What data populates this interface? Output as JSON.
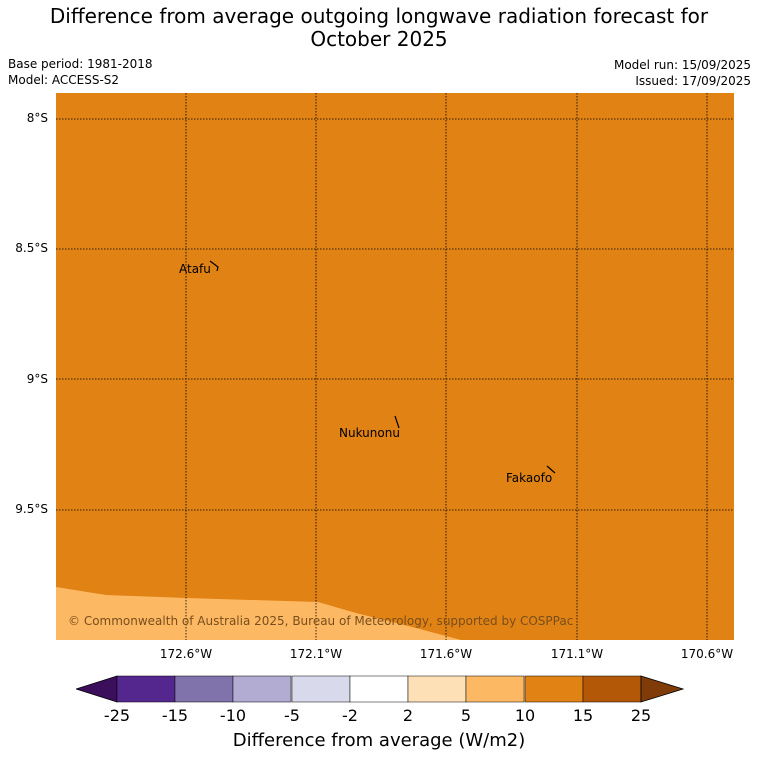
{
  "title_line1": "Difference from average outgoing longwave radiation forecast for",
  "title_line2": "October 2025",
  "base_period": "Base period: 1981-2018",
  "model": "Model: ACCESS-S2",
  "model_run": "Model run: 15/09/2025",
  "issued": "Issued: 17/09/2025",
  "lat_labels": [
    "8°S",
    "8.5°S",
    "9°S",
    "9.5°S"
  ],
  "lon_labels": [
    "172.6°W",
    "172.1°W",
    "171.6°W",
    "171.1°W",
    "170.6°W"
  ],
  "places": [
    "Atafu",
    "Nukunonu",
    "Fakaofo"
  ],
  "copyright": "© Commonwealth of Australia 2025, Bureau of Meteorology, supported by COSPPac",
  "colorbar": {
    "ticks": [
      "-25",
      "-15",
      "-10",
      "-5",
      "-2",
      "2",
      "5",
      "10",
      "15",
      "25"
    ],
    "colors": [
      "#3b0f5b",
      "#54278f",
      "#8073ac",
      "#b2abd2",
      "#d8daeb",
      "#ffffff",
      "#fee0b6",
      "#fdb863",
      "#e08214",
      "#b35806",
      "#7f3b08"
    ],
    "label": "Difference from average (W/m2)"
  },
  "map_fill_colors": {
    "main": "#e08214",
    "lower": "#fdb863"
  }
}
